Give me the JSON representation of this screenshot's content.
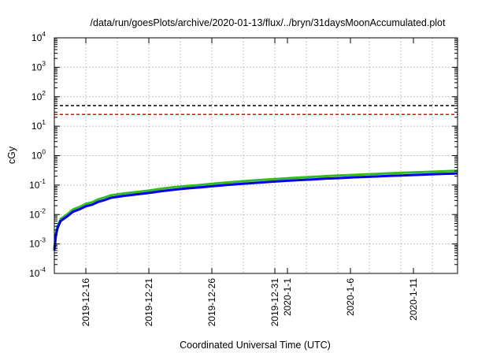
{
  "chart_data": {
    "type": "line",
    "title": "/data/run/goesPlots/archive/2020-01-13/flux/../bryn/31daysMoonAccumulated.plot",
    "xlabel": "Coordinated Universal Time (UTC)",
    "ylabel": "cGy",
    "yscale": "log",
    "ylim": [
      0.0001,
      10000
    ],
    "xlim": [
      "2019-12-13T12:00",
      "2020-01-14T12:00"
    ],
    "y_ticks": [
      {
        "base": "10",
        "exp": "-4",
        "value": 0.0001
      },
      {
        "base": "10",
        "exp": "-3",
        "value": 0.001
      },
      {
        "base": "10",
        "exp": "-2",
        "value": 0.01
      },
      {
        "base": "10",
        "exp": "-1",
        "value": 0.1
      },
      {
        "base": "10",
        "exp": "0",
        "value": 1
      },
      {
        "base": "10",
        "exp": "1",
        "value": 10
      },
      {
        "base": "10",
        "exp": "2",
        "value": 100
      },
      {
        "base": "10",
        "exp": "3",
        "value": 1000
      },
      {
        "base": "10",
        "exp": "4",
        "value": 10000
      }
    ],
    "x_ticks": [
      {
        "date": "2019-12-16",
        "label": "2019-12-16"
      },
      {
        "date": "2019-12-21",
        "label": "2019-12-21"
      },
      {
        "date": "2019-12-26",
        "label": "2019-12-26"
      },
      {
        "date": "2019-12-31",
        "label": "2019-12-31"
      },
      {
        "date": "2020-01-01",
        "label": "2020-1-1"
      },
      {
        "date": "2020-01-06",
        "label": "2020-1-6"
      },
      {
        "date": "2020-01-11",
        "label": "2020-1-11"
      }
    ],
    "grid": true,
    "reference_lines": [
      {
        "y": 50,
        "color": "#000000",
        "style": "dashed"
      },
      {
        "y": 25,
        "color": "#ff0000",
        "style": "dashed"
      }
    ],
    "series": [
      {
        "color": "#33bb22",
        "points": [
          [
            "2019-12-13T12:00",
            0.0007
          ],
          [
            "2019-12-13T15:00",
            0.0022
          ],
          [
            "2019-12-13T18:00",
            0.004
          ],
          [
            "2019-12-14T00:00",
            0.007
          ],
          [
            "2019-12-14T12:00",
            0.01
          ],
          [
            "2019-12-15T00:00",
            0.015
          ],
          [
            "2019-12-15T12:00",
            0.018
          ],
          [
            "2019-12-16T00:00",
            0.023
          ],
          [
            "2019-12-16T12:00",
            0.026
          ],
          [
            "2019-12-17T00:00",
            0.033
          ],
          [
            "2019-12-17T12:00",
            0.038
          ],
          [
            "2019-12-18T00:00",
            0.045
          ],
          [
            "2019-12-19T00:00",
            0.052
          ],
          [
            "2019-12-20T00:00",
            0.058
          ],
          [
            "2019-12-21T00:00",
            0.065
          ],
          [
            "2019-12-22T00:00",
            0.075
          ],
          [
            "2019-12-23T00:00",
            0.085
          ],
          [
            "2019-12-24T00:00",
            0.093
          ],
          [
            "2019-12-25T00:00",
            0.1
          ],
          [
            "2019-12-26T00:00",
            0.11
          ],
          [
            "2019-12-27T00:00",
            0.12
          ],
          [
            "2019-12-28T00:00",
            0.13
          ],
          [
            "2019-12-29T00:00",
            0.14
          ],
          [
            "2019-12-30T00:00",
            0.15
          ],
          [
            "2019-12-31T00:00",
            0.16
          ],
          [
            "2020-01-01T00:00",
            0.17
          ],
          [
            "2020-01-02T00:00",
            0.18
          ],
          [
            "2020-01-03T00:00",
            0.19
          ],
          [
            "2020-01-04T00:00",
            0.2
          ],
          [
            "2020-01-05T00:00",
            0.21
          ],
          [
            "2020-01-06T00:00",
            0.22
          ],
          [
            "2020-01-07T00:00",
            0.23
          ],
          [
            "2020-01-08T00:00",
            0.24
          ],
          [
            "2020-01-09T00:00",
            0.25
          ],
          [
            "2020-01-10T00:00",
            0.26
          ],
          [
            "2020-01-11T00:00",
            0.27
          ],
          [
            "2020-01-12T00:00",
            0.28
          ],
          [
            "2020-01-13T00:00",
            0.29
          ],
          [
            "2020-01-14T00:00",
            0.3
          ],
          [
            "2020-01-14T12:00",
            0.305
          ]
        ]
      },
      {
        "color": "#0000ee",
        "points": [
          [
            "2019-12-13T12:00",
            0.0006
          ],
          [
            "2019-12-13T15:00",
            0.0019
          ],
          [
            "2019-12-13T18:00",
            0.0034
          ],
          [
            "2019-12-14T00:00",
            0.006
          ],
          [
            "2019-12-14T12:00",
            0.0085
          ],
          [
            "2019-12-15T00:00",
            0.0125
          ],
          [
            "2019-12-15T12:00",
            0.015
          ],
          [
            "2019-12-16T00:00",
            0.019
          ],
          [
            "2019-12-16T12:00",
            0.0215
          ],
          [
            "2019-12-17T00:00",
            0.027
          ],
          [
            "2019-12-17T12:00",
            0.031
          ],
          [
            "2019-12-18T00:00",
            0.037
          ],
          [
            "2019-12-19T00:00",
            0.043
          ],
          [
            "2019-12-20T00:00",
            0.048
          ],
          [
            "2019-12-21T00:00",
            0.054
          ],
          [
            "2019-12-22T00:00",
            0.062
          ],
          [
            "2019-12-23T00:00",
            0.07
          ],
          [
            "2019-12-24T00:00",
            0.077
          ],
          [
            "2019-12-25T00:00",
            0.083
          ],
          [
            "2019-12-26T00:00",
            0.091
          ],
          [
            "2019-12-27T00:00",
            0.099
          ],
          [
            "2019-12-28T00:00",
            0.107
          ],
          [
            "2019-12-29T00:00",
            0.115
          ],
          [
            "2019-12-30T00:00",
            0.123
          ],
          [
            "2019-12-31T00:00",
            0.132
          ],
          [
            "2020-01-01T00:00",
            0.14
          ],
          [
            "2020-01-02T00:00",
            0.148
          ],
          [
            "2020-01-03T00:00",
            0.156
          ],
          [
            "2020-01-04T00:00",
            0.164
          ],
          [
            "2020-01-05T00:00",
            0.172
          ],
          [
            "2020-01-06T00:00",
            0.18
          ],
          [
            "2020-01-07T00:00",
            0.188
          ],
          [
            "2020-01-08T00:00",
            0.196
          ],
          [
            "2020-01-09T00:00",
            0.204
          ],
          [
            "2020-01-10T00:00",
            0.212
          ],
          [
            "2020-01-11T00:00",
            0.22
          ],
          [
            "2020-01-12T00:00",
            0.228
          ],
          [
            "2020-01-13T00:00",
            0.236
          ],
          [
            "2020-01-14T00:00",
            0.244
          ],
          [
            "2020-01-14T12:00",
            0.248
          ]
        ]
      }
    ]
  }
}
